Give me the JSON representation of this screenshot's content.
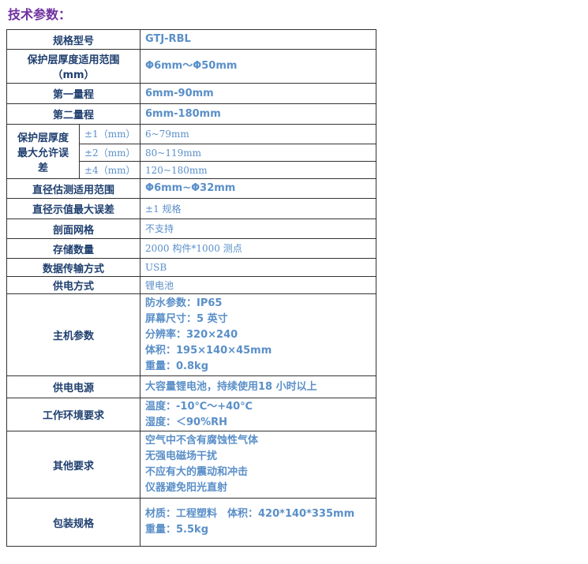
{
  "title": "技术参数：",
  "table": {
    "rows": [
      {
        "label": "规格型号",
        "value": [
          "GTJ-RBL"
        ]
      },
      {
        "label": "保护层厚度适用范围（mm）",
        "value": [
          "Φ6mm～Φ50mm"
        ]
      },
      {
        "label": "第一量程",
        "value": [
          "6mm-90mm"
        ]
      },
      {
        "label": "第二量程",
        "value": [
          "6mm-180mm"
        ]
      },
      {
        "label": "保护层厚度最大允许误差",
        "sub": [
          {
            "label": "±1（mm）",
            "value": "6~79mm"
          },
          {
            "label": "±2（mm）",
            "value": "80~119mm"
          },
          {
            "label": "±4（mm）",
            "value": "120~180mm"
          }
        ]
      },
      {
        "label": "直径估测适用范围",
        "value": [
          "Φ6mm~Φ32mm"
        ]
      },
      {
        "label": "直径示值最大误差",
        "value": [
          "±1 规格"
        ]
      },
      {
        "label": "剖面网格",
        "value": [
          "不支持"
        ]
      },
      {
        "label": "存储数量",
        "value": [
          "2000 构件*1000 测点"
        ]
      },
      {
        "label": "数据传输方式",
        "value": [
          "USB"
        ]
      },
      {
        "label": "供电方式",
        "value": [
          "锂电池"
        ]
      },
      {
        "label": "主机参数",
        "value": [
          "防水参数：IP65",
          "屏幕尺寸：5 英寸",
          "分辨率：320×240",
          "体积：195×140×45mm",
          "重量：0.8kg"
        ]
      },
      {
        "label": "供电电源",
        "value": [
          "大容量锂电池，持续使用18 小时以上"
        ]
      },
      {
        "label": "工作环境要求",
        "value": [
          "温度：-10℃～+40℃",
          "湿度：＜90%RH"
        ]
      },
      {
        "label": "其他要求",
        "value": [
          "空气中不含有腐蚀性气体",
          "无强电磁场干扰",
          "不应有大的震动和冲击",
          "仪器避免阳光直射"
        ]
      },
      {
        "label": "包装规格",
        "value": [
          "材质：工程塑料　体积：420*140*335mm",
          "重量：5.5kg"
        ]
      }
    ]
  }
}
